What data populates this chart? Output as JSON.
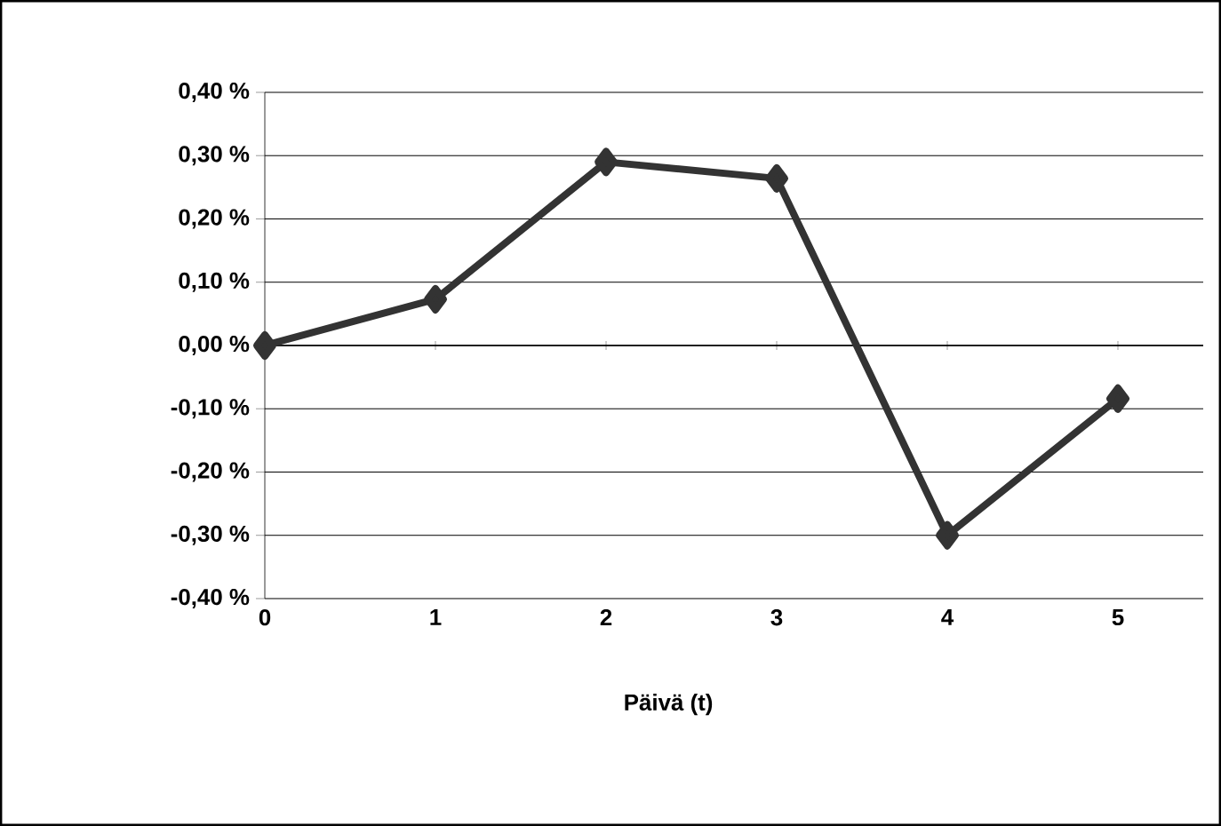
{
  "chart_data": {
    "type": "line",
    "xlabel": "Päivä (t)",
    "x": [
      0,
      1,
      2,
      3,
      4,
      5
    ],
    "series": [
      {
        "color": "#333333",
        "values": [
          0.0,
          0.073,
          0.29,
          0.264,
          -0.3,
          -0.084
        ]
      }
    ],
    "xlim": [
      0,
      5.5
    ],
    "xticks": [
      0,
      1,
      2,
      3,
      4,
      5
    ],
    "ylim": [
      -0.4,
      0.4
    ],
    "yticks": [
      {
        "value": -0.4,
        "label": "-0,40 %"
      },
      {
        "value": -0.3,
        "label": "-0,30 %"
      },
      {
        "value": -0.2,
        "label": "-0,20 %"
      },
      {
        "value": -0.1,
        "label": "-0,10 %"
      },
      {
        "value": 0,
        "label": "0,00 %"
      },
      {
        "value": 0.1,
        "label": "0,10 %"
      },
      {
        "value": 0.2,
        "label": "0,20 %"
      },
      {
        "value": 0.3,
        "label": "0,30 %"
      },
      {
        "value": 0.4,
        "label": "0,40 %"
      }
    ],
    "grid": "y",
    "marker": "diamond",
    "line_style": "solid"
  }
}
